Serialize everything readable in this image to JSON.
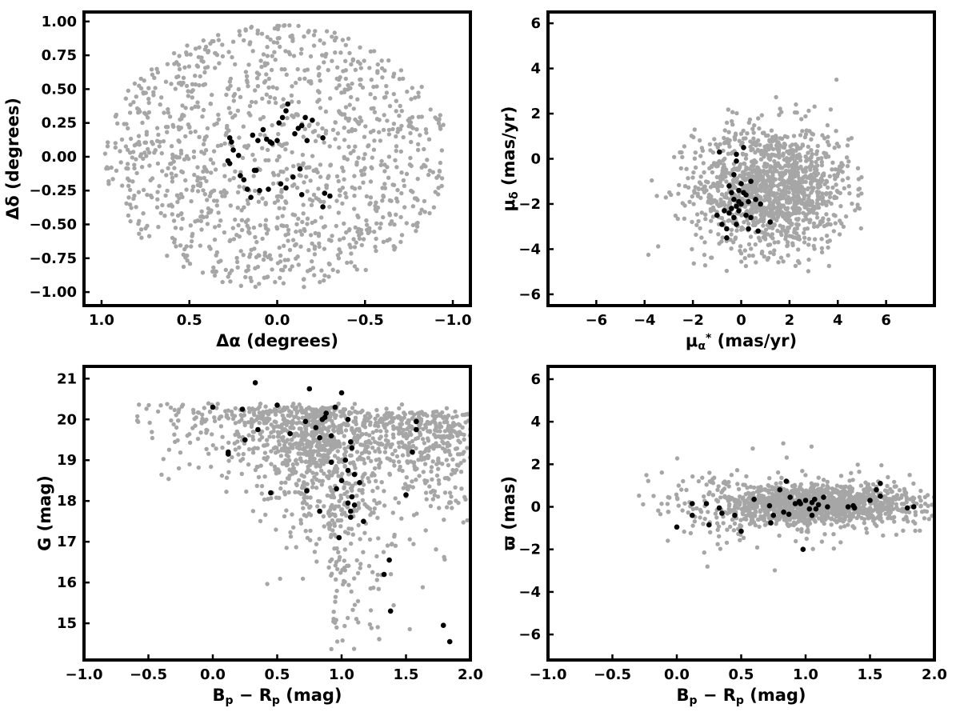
{
  "chart_data": [
    {
      "id": "ra-dec",
      "type": "scatter",
      "xlabel": "Δα (degrees)",
      "ylabel": "Δδ (degrees)",
      "xlim": [
        1.1,
        -1.1
      ],
      "ylim": [
        -1.1,
        1.07
      ],
      "xticks": [
        1.0,
        0.5,
        0.0,
        -0.5,
        -1.0
      ],
      "xtick_labels": [
        "1.0",
        "0.5",
        "0.0",
        "−0.5",
        "−1.0"
      ],
      "yticks": [
        1.0,
        0.75,
        0.5,
        0.25,
        0.0,
        -0.25,
        -0.5,
        -0.75,
        -1.0
      ],
      "ytick_labels": [
        "1.00",
        "0.75",
        "0.50",
        "0.25",
        "0.00",
        "−0.25",
        "−0.50",
        "−0.75",
        "−1.00"
      ],
      "series": [
        {
          "role": "field",
          "color": "#a6a6a6",
          "distribution": "uniform-disk",
          "center": [
            0,
            0
          ],
          "radius": 0.98,
          "count": 1200
        },
        {
          "role": "members",
          "color": "#000000",
          "points": [
            [
              0.27,
              0.14
            ],
            [
              0.26,
              0.11
            ],
            [
              0.25,
              0.05
            ],
            [
              0.28,
              -0.03
            ],
            [
              0.27,
              -0.05
            ],
            [
              0.22,
              0.01
            ],
            [
              0.21,
              -0.14
            ],
            [
              0.19,
              -0.17
            ],
            [
              0.17,
              -0.24
            ],
            [
              0.15,
              -0.3
            ],
            [
              0.14,
              0.16
            ],
            [
              0.11,
              0.12
            ],
            [
              0.08,
              0.2
            ],
            [
              0.06,
              0.13
            ],
            [
              0.04,
              0.11
            ],
            [
              0.03,
              0.1
            ],
            [
              -0.01,
              0.25
            ],
            [
              -0.03,
              0.29
            ],
            [
              -0.05,
              0.34
            ],
            [
              -0.06,
              0.39
            ],
            [
              -0.1,
              0.17
            ],
            [
              -0.12,
              0.21
            ],
            [
              -0.14,
              0.23
            ],
            [
              -0.16,
              0.29
            ],
            [
              -0.2,
              0.27
            ],
            [
              -0.26,
              0.14
            ],
            [
              -0.13,
              -0.09
            ],
            [
              -0.09,
              -0.15
            ],
            [
              -0.02,
              -0.2
            ],
            [
              -0.05,
              -0.23
            ],
            [
              0.05,
              -0.24
            ],
            [
              0.1,
              -0.25
            ],
            [
              0.13,
              -0.1
            ],
            [
              -0.14,
              -0.28
            ],
            [
              -0.26,
              -0.37
            ],
            [
              -0.3,
              -0.29
            ],
            [
              -0.27,
              -0.27
            ],
            [
              0.12,
              -0.1
            ],
            [
              -0.17,
              0.12
            ],
            [
              0.0,
              0.12
            ]
          ]
        }
      ]
    },
    {
      "id": "proper-motion",
      "type": "scatter",
      "xlabel": "μα* (mas/yr)",
      "ylabel": "μδ (mas/yr)",
      "xlim": [
        -8,
        8
      ],
      "ylim": [
        -6.5,
        6.5
      ],
      "xticks": [
        -6,
        -4,
        -2,
        0,
        2,
        4,
        6
      ],
      "xtick_labels": [
        "−6",
        "−4",
        "−2",
        "0",
        "2",
        "4",
        "6"
      ],
      "yticks": [
        6,
        4,
        2,
        0,
        -2,
        -4,
        -6
      ],
      "ytick_labels": [
        "6",
        "4",
        "2",
        "0",
        "−2",
        "−4",
        "−6"
      ],
      "series": [
        {
          "role": "field",
          "color": "#a6a6a6",
          "distribution": "gaussian-clipped",
          "center": [
            1.3,
            -1.3
          ],
          "sigma": [
            1.6,
            1.4
          ],
          "xrange": [
            -5,
            5
          ],
          "yrange": [
            -5,
            4.6
          ],
          "count": 1300
        },
        {
          "role": "members",
          "color": "#000000",
          "points": [
            [
              -0.2,
              0.2
            ],
            [
              0.1,
              0.5
            ],
            [
              -0.9,
              0.3
            ],
            [
              -0.2,
              -0.1
            ],
            [
              -0.3,
              -0.7
            ],
            [
              0.4,
              -1.0
            ],
            [
              -0.5,
              -1.2
            ],
            [
              -0.1,
              -1.4
            ],
            [
              0.1,
              -1.5
            ],
            [
              0.2,
              -1.6
            ],
            [
              -0.3,
              -1.8
            ],
            [
              -0.1,
              -1.9
            ],
            [
              0.0,
              -2.0
            ],
            [
              -0.2,
              -2.1
            ],
            [
              -0.4,
              -2.2
            ],
            [
              0.3,
              -1.9
            ],
            [
              0.6,
              -1.8
            ],
            [
              0.8,
              -2.0
            ],
            [
              -0.7,
              -2.3
            ],
            [
              -0.5,
              -2.4
            ],
            [
              -0.3,
              -2.6
            ],
            [
              0.2,
              -2.5
            ],
            [
              0.4,
              -2.6
            ],
            [
              -1.0,
              -2.5
            ],
            [
              -0.8,
              -2.9
            ],
            [
              -0.6,
              -3.1
            ],
            [
              -0.6,
              -3.5
            ],
            [
              -0.2,
              -2.9
            ],
            [
              0.3,
              -3.1
            ],
            [
              0.7,
              -3.2
            ],
            [
              1.2,
              -2.8
            ],
            [
              -0.1,
              -2.3
            ],
            [
              0.0,
              -1.1
            ],
            [
              -0.4,
              -1.5
            ]
          ]
        }
      ]
    },
    {
      "id": "cmd-g",
      "type": "scatter",
      "xlabel": "Bp − Rp (mag)",
      "ylabel": "G (mag)",
      "xlim": [
        -1.0,
        2.0
      ],
      "ylim": [
        14.1,
        21.3
      ],
      "y_inverted": false,
      "xticks": [
        -1.0,
        -0.5,
        0.0,
        0.5,
        1.0,
        1.5,
        2.0
      ],
      "xtick_labels": [
        "−1.0",
        "−0.5",
        "0.0",
        "0.5",
        "1.0",
        "1.5",
        "2.0"
      ],
      "yticks": [
        21,
        20,
        19,
        18,
        17,
        16,
        15
      ],
      "ytick_labels": [
        "21",
        "20",
        "19",
        "18",
        "17",
        "16",
        "15"
      ],
      "series": [
        {
          "role": "field",
          "color": "#a6a6a6",
          "distribution": "cmd-band",
          "count": 1500
        },
        {
          "role": "members",
          "color": "#000000",
          "points": [
            [
              0.0,
              20.3
            ],
            [
              0.12,
              19.2
            ],
            [
              0.12,
              19.15
            ],
            [
              0.23,
              20.25
            ],
            [
              0.25,
              19.5
            ],
            [
              0.33,
              20.9
            ],
            [
              0.35,
              19.75
            ],
            [
              0.5,
              20.35
            ],
            [
              0.6,
              19.65
            ],
            [
              0.45,
              18.2
            ],
            [
              0.72,
              19.95
            ],
            [
              0.75,
              20.75
            ],
            [
              0.8,
              19.8
            ],
            [
              0.83,
              19.55
            ],
            [
              0.85,
              20.0
            ],
            [
              0.87,
              20.05
            ],
            [
              0.88,
              20.15
            ],
            [
              0.92,
              19.6
            ],
            [
              0.95,
              20.3
            ],
            [
              1.0,
              20.65
            ],
            [
              1.05,
              20.0
            ],
            [
              1.08,
              19.3
            ],
            [
              1.07,
              19.45
            ],
            [
              1.03,
              19.0
            ],
            [
              0.92,
              18.95
            ],
            [
              0.96,
              18.3
            ],
            [
              1.0,
              18.5
            ],
            [
              0.73,
              18.25
            ],
            [
              0.83,
              17.75
            ],
            [
              1.05,
              18.75
            ],
            [
              1.1,
              18.65
            ],
            [
              1.14,
              18.45
            ],
            [
              1.08,
              18.1
            ],
            [
              1.1,
              17.9
            ],
            [
              1.07,
              17.75
            ],
            [
              1.07,
              17.6
            ],
            [
              1.17,
              17.5
            ],
            [
              1.05,
              17.95
            ],
            [
              0.98,
              17.1
            ],
            [
              1.33,
              16.2
            ],
            [
              1.37,
              16.55
            ],
            [
              1.38,
              15.3
            ],
            [
              1.5,
              18.15
            ],
            [
              1.55,
              19.2
            ],
            [
              1.58,
              19.95
            ],
            [
              1.58,
              19.75
            ],
            [
              1.79,
              14.95
            ],
            [
              1.84,
              14.55
            ]
          ]
        }
      ]
    },
    {
      "id": "cmd-parallax",
      "type": "scatter",
      "xlabel": "Bp − Rp (mag)",
      "ylabel": "ϖ (mas)",
      "xlim": [
        -1.0,
        2.0
      ],
      "ylim": [
        -7.2,
        6.6
      ],
      "xticks": [
        -1.0,
        -0.5,
        0.0,
        0.5,
        1.0,
        1.5,
        2.0
      ],
      "xtick_labels": [
        "−1.0",
        "−0.5",
        "0.0",
        "0.5",
        "1.0",
        "1.5",
        "2.0"
      ],
      "yticks": [
        6,
        4,
        2,
        0,
        -2,
        -4,
        -6
      ],
      "ytick_labels": [
        "6",
        "4",
        "2",
        "0",
        "−2",
        "−4",
        "−6"
      ],
      "series": [
        {
          "role": "field",
          "color": "#a6a6a6",
          "distribution": "horizontal-band",
          "count": 1400
        },
        {
          "role": "members",
          "color": "#000000",
          "points": [
            [
              0.0,
              -0.95
            ],
            [
              0.12,
              0.15
            ],
            [
              0.12,
              -0.4
            ],
            [
              0.23,
              0.15
            ],
            [
              0.25,
              -0.85
            ],
            [
              0.33,
              -0.05
            ],
            [
              0.35,
              -0.3
            ],
            [
              0.45,
              -0.4
            ],
            [
              0.5,
              -1.15
            ],
            [
              0.6,
              0.35
            ],
            [
              0.72,
              0.05
            ],
            [
              0.75,
              -0.4
            ],
            [
              0.8,
              0.8
            ],
            [
              0.83,
              -0.25
            ],
            [
              0.85,
              1.2
            ],
            [
              0.87,
              -0.35
            ],
            [
              0.88,
              0.45
            ],
            [
              0.92,
              0.15
            ],
            [
              0.95,
              0.25
            ],
            [
              0.96,
              0.15
            ],
            [
              0.98,
              -2.0
            ],
            [
              1.0,
              0.3
            ],
            [
              1.03,
              -0.1
            ],
            [
              1.05,
              0.2
            ],
            [
              1.07,
              0.35
            ],
            [
              1.08,
              -0.1
            ],
            [
              1.1,
              0.1
            ],
            [
              1.14,
              0.45
            ],
            [
              1.17,
              0.0
            ],
            [
              1.33,
              0.0
            ],
            [
              1.37,
              0.05
            ],
            [
              1.38,
              -0.05
            ],
            [
              1.5,
              0.3
            ],
            [
              1.55,
              0.8
            ],
            [
              1.58,
              1.1
            ],
            [
              1.58,
              0.5
            ],
            [
              1.79,
              -0.05
            ],
            [
              1.84,
              0.0
            ],
            [
              0.73,
              -0.75
            ],
            [
              1.05,
              -0.4
            ]
          ]
        }
      ]
    }
  ]
}
